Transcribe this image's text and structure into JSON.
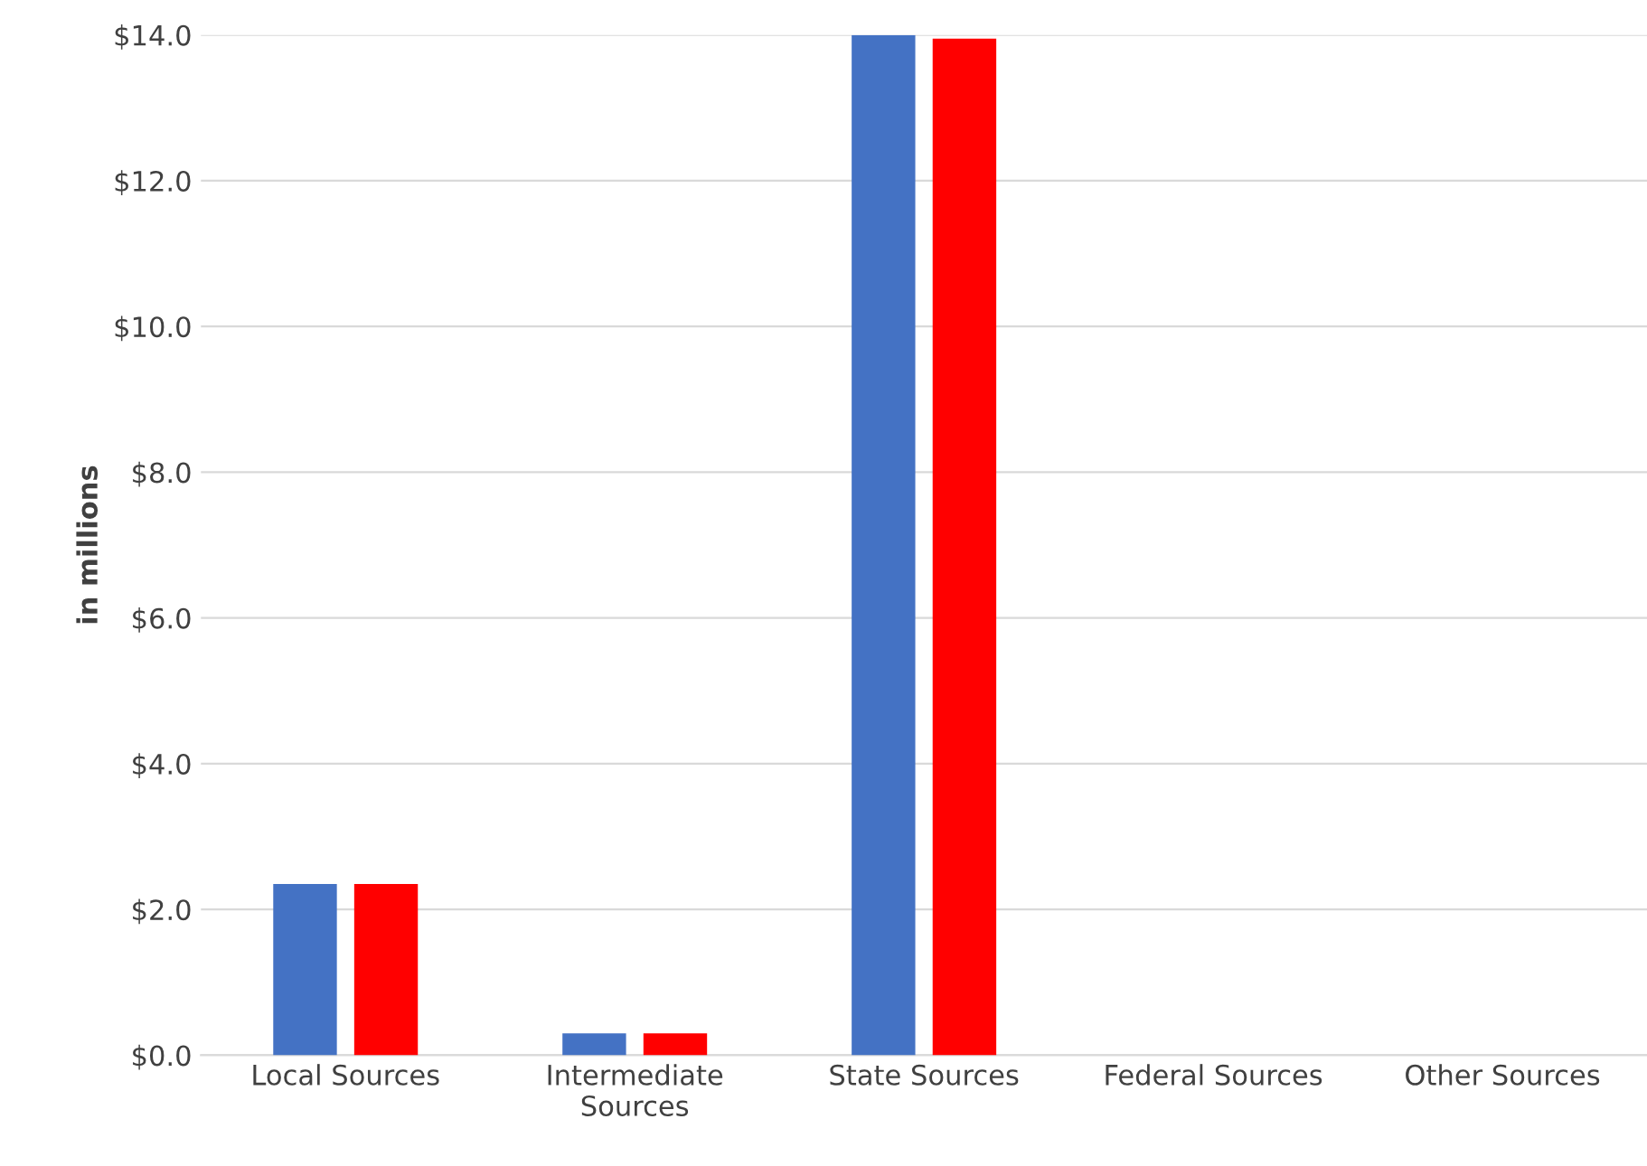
{
  "chart_data": {
    "type": "bar",
    "ylabel": "in millions",
    "categories": [
      "Local Sources",
      "Intermediate\nSources",
      "State Sources",
      "Federal Sources",
      "Other Sources"
    ],
    "series": [
      {
        "color": "#4472c4",
        "values": [
          2.35,
          0.3,
          14.0,
          0,
          0
        ]
      },
      {
        "color": "#ff0000",
        "values": [
          2.35,
          0.3,
          13.95,
          0,
          0
        ]
      }
    ],
    "ylim": [
      0,
      14
    ],
    "yticks": [
      {
        "value": 0,
        "label": "$0.0"
      },
      {
        "value": 2,
        "label": "$2.0"
      },
      {
        "value": 4,
        "label": "$4.0"
      },
      {
        "value": 6,
        "label": "$6.0"
      },
      {
        "value": 8,
        "label": "$8.0"
      },
      {
        "value": 10,
        "label": "$10.0"
      },
      {
        "value": 12,
        "label": "$12.0"
      },
      {
        "value": 14,
        "label": "$14.0"
      }
    ],
    "grid": "y",
    "legend": false
  }
}
